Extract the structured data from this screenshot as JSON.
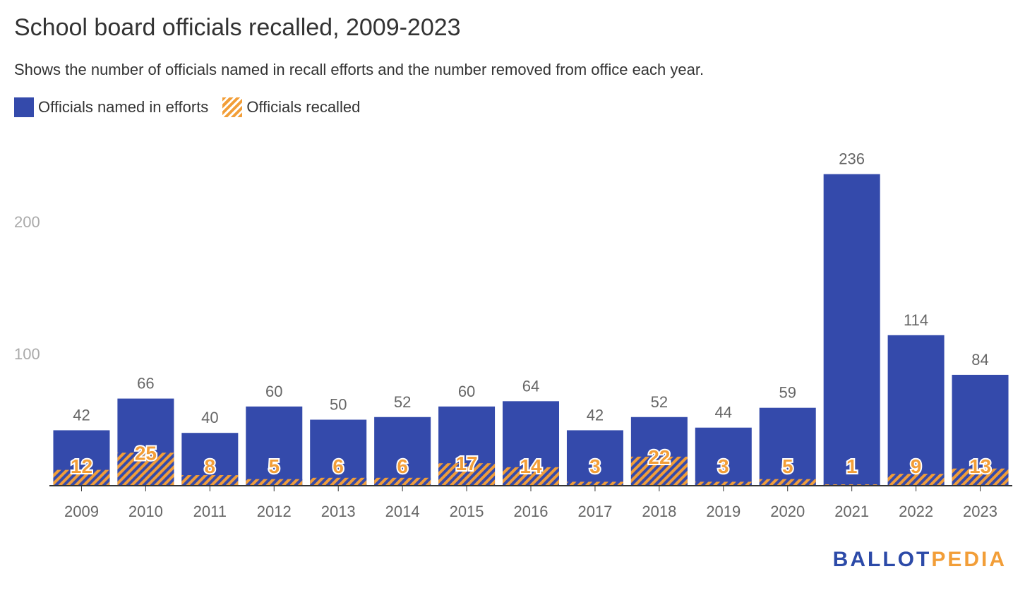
{
  "colors": {
    "named": "#344aab",
    "recalled": "#f29e38",
    "axis_text": "#666666",
    "ytick_text": "#aaaaaa"
  },
  "chart_data": {
    "type": "bar",
    "title": "School board officials recalled, 2009-2023",
    "subtitle": "Shows the number of officials named in recall efforts and the number removed from office each year.",
    "categories": [
      "2009",
      "2010",
      "2011",
      "2012",
      "2013",
      "2014",
      "2015",
      "2016",
      "2017",
      "2018",
      "2019",
      "2020",
      "2021",
      "2022",
      "2023"
    ],
    "series": [
      {
        "name": "Officials named in efforts",
        "values": [
          42,
          66,
          40,
          60,
          50,
          52,
          60,
          64,
          42,
          52,
          44,
          59,
          236,
          114,
          84
        ]
      },
      {
        "name": "Officials recalled",
        "values": [
          12,
          25,
          8,
          5,
          6,
          6,
          17,
          14,
          3,
          22,
          3,
          5,
          1,
          9,
          13
        ]
      }
    ],
    "yticks": [
      100,
      200
    ],
    "ylim": [
      0,
      260
    ],
    "grid": false,
    "legend_position": "top-left",
    "overlay": true
  },
  "brand": {
    "logo_part1": "BALLOT",
    "logo_part2": "PEDIA"
  }
}
